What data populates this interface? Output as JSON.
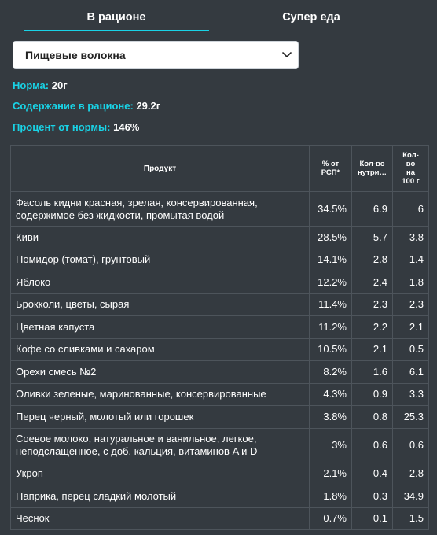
{
  "tabs": [
    {
      "label": "В рационе",
      "active": true
    },
    {
      "label": "Супер еда",
      "active": false
    }
  ],
  "nutrient_select": {
    "value": "Пищевые волокна"
  },
  "stats": {
    "norm_key": "Норма:",
    "norm_val": "20г",
    "content_key": "Содержание в рационе:",
    "content_val": "29.2г",
    "pct_key": "Процент от нормы:",
    "pct_val": "146%"
  },
  "table": {
    "headers": {
      "product": "Продукт",
      "pct_line1": "% от",
      "pct_line2": "РСП*",
      "amt_line1": "Кол-во",
      "amt_line2": "нутри…",
      "per100_line1": "Кол-",
      "per100_line2": "во",
      "per100_line3": "на",
      "per100_line4": "100 г"
    },
    "rows": [
      {
        "product": "Фасоль кидни красная, зрелая, консервированная, содержимое без жидкости, промытая водой",
        "pct": "34.5%",
        "amount": "6.9",
        "per100": "6"
      },
      {
        "product": "Киви",
        "pct": "28.5%",
        "amount": "5.7",
        "per100": "3.8"
      },
      {
        "product": "Помидор (томат), грунтовый",
        "pct": "14.1%",
        "amount": "2.8",
        "per100": "1.4"
      },
      {
        "product": "Яблоко",
        "pct": "12.2%",
        "amount": "2.4",
        "per100": "1.8"
      },
      {
        "product": "Брокколи, цветы, сырая",
        "pct": "11.4%",
        "amount": "2.3",
        "per100": "2.3"
      },
      {
        "product": "Цветная капуста",
        "pct": "11.2%",
        "amount": "2.2",
        "per100": "2.1"
      },
      {
        "product": "Кофе со сливками и сахаром",
        "pct": "10.5%",
        "amount": "2.1",
        "per100": "0.5"
      },
      {
        "product": "Орехи смесь №2",
        "pct": "8.2%",
        "amount": "1.6",
        "per100": "6.1"
      },
      {
        "product": "Оливки зеленые, маринованные, консервированные",
        "pct": "4.3%",
        "amount": "0.9",
        "per100": "3.3"
      },
      {
        "product": "Перец черный, молотый или горошек",
        "pct": "3.8%",
        "amount": "0.8",
        "per100": "25.3"
      },
      {
        "product": "Соевое молоко, натуральное и ванильное, легкое, неподслащенное, с доб. кальция, витаминов A и D",
        "pct": "3%",
        "amount": "0.6",
        "per100": "0.6"
      },
      {
        "product": "Укроп",
        "pct": "2.1%",
        "amount": "0.4",
        "per100": "2.8"
      },
      {
        "product": "Паприка, перец сладкий молотый",
        "pct": "1.8%",
        "amount": "0.3",
        "per100": "34.9"
      },
      {
        "product": "Чеснок",
        "pct": "0.7%",
        "amount": "0.1",
        "per100": "1.5"
      }
    ]
  },
  "colors": {
    "background": "#343a40",
    "accent": "#19d3e6",
    "text": "#ffffff",
    "grid": "#4d545b"
  }
}
